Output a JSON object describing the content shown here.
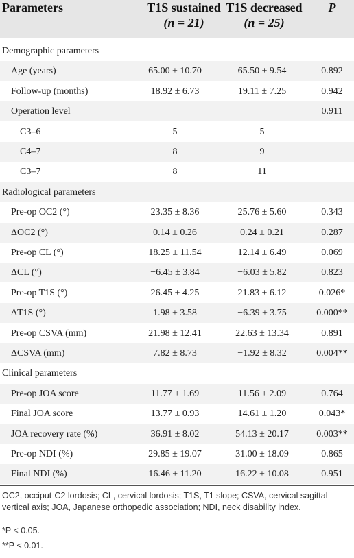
{
  "header": {
    "parameters": "Parameters",
    "col1_title": "T1S sustained",
    "col1_n": "(n = 21)",
    "col2_title": "T1S decreased",
    "col2_n": "(n = 25)",
    "col3_title": "P"
  },
  "rows": [
    {
      "level": 1,
      "label": "Demographic parameters",
      "v1": "",
      "v2": "",
      "p": ""
    },
    {
      "level": 2,
      "label": "Age (years)",
      "v1": "65.00 ± 10.70",
      "v2": "65.50 ± 9.54",
      "p": "0.892"
    },
    {
      "level": 2,
      "label": "Follow-up (months)",
      "v1": "18.92 ± 6.73",
      "v2": "19.11 ± 7.25",
      "p": "0.942"
    },
    {
      "level": 2,
      "label": "Operation level",
      "v1": "",
      "v2": "",
      "p": "0.911"
    },
    {
      "level": 3,
      "label": "C3–6",
      "v1": "5",
      "v2": "5",
      "p": ""
    },
    {
      "level": 3,
      "label": "C4–7",
      "v1": "8",
      "v2": "9",
      "p": ""
    },
    {
      "level": 3,
      "label": "C3–7",
      "v1": "8",
      "v2": "11",
      "p": ""
    },
    {
      "level": 1,
      "label": "Radiological parameters",
      "v1": "",
      "v2": "",
      "p": ""
    },
    {
      "level": 2,
      "label": "Pre-op OC2 (°)",
      "v1": "23.35 ± 8.36",
      "v2": "25.76 ± 5.60",
      "p": "0.343"
    },
    {
      "level": 2,
      "label": "ΔOC2 (°)",
      "v1": "0.14 ± 0.26",
      "v2": "0.24 ± 0.21",
      "p": "0.287"
    },
    {
      "level": 2,
      "label": "Pre-op CL (°)",
      "v1": "18.25 ± 11.54",
      "v2": "12.14 ± 6.49",
      "p": "0.069"
    },
    {
      "level": 2,
      "label": "ΔCL (°)",
      "v1": "−6.45 ± 3.84",
      "v2": "−6.03 ± 5.82",
      "p": "0.823"
    },
    {
      "level": 2,
      "label": "Pre-op T1S (°)",
      "v1": "26.45 ± 4.25",
      "v2": "21.83 ± 6.12",
      "p": "0.026*"
    },
    {
      "level": 2,
      "label": "ΔT1S (°)",
      "v1": "1.98 ± 3.58",
      "v2": "−6.39 ± 3.75",
      "p": "0.000**"
    },
    {
      "level": 2,
      "label": "Pre-op CSVA (mm)",
      "v1": "21.98 ± 12.41",
      "v2": "22.63 ± 13.34",
      "p": "0.891"
    },
    {
      "level": 2,
      "label": "ΔCSVA (mm)",
      "v1": "7.82 ± 8.73",
      "v2": "−1.92 ± 8.32",
      "p": "0.004**"
    },
    {
      "level": 1,
      "label": "Clinical parameters",
      "v1": "",
      "v2": "",
      "p": ""
    },
    {
      "level": 2,
      "label": "Pre-op JOA score",
      "v1": "11.77 ± 1.69",
      "v2": "11.56 ± 2.09",
      "p": "0.764"
    },
    {
      "level": 2,
      "label": "Final JOA score",
      "v1": "13.77 ± 0.93",
      "v2": "14.61 ± 1.20",
      "p": "0.043*"
    },
    {
      "level": 2,
      "label": "JOA recovery rate (%)",
      "v1": "36.91 ± 8.02",
      "v2": "54.13 ± 20.17",
      "p": "0.003**"
    },
    {
      "level": 2,
      "label": "Pre-op NDI (%)",
      "v1": "29.85 ± 19.07",
      "v2": "31.00 ± 18.09",
      "p": "0.865"
    },
    {
      "level": 2,
      "label": "Final NDI (%)",
      "v1": "16.46 ± 11.20",
      "v2": "16.22 ± 10.08",
      "p": "0.951"
    }
  ],
  "footnotes": {
    "abbrev": "OC2, occiput-C2 lordosis; CL, cervical lordosis; T1S, T1 slope; CSVA, cervical sagittal vertical axis; JOA, Japanese orthopedic association; NDI, neck disability index.",
    "note1": "*P < 0.05.",
    "note2": "**P < 0.01."
  },
  "colors": {
    "header_bg": "#e6e6e6",
    "stripe_bg": "#f2f2f2",
    "text": "#222222"
  }
}
